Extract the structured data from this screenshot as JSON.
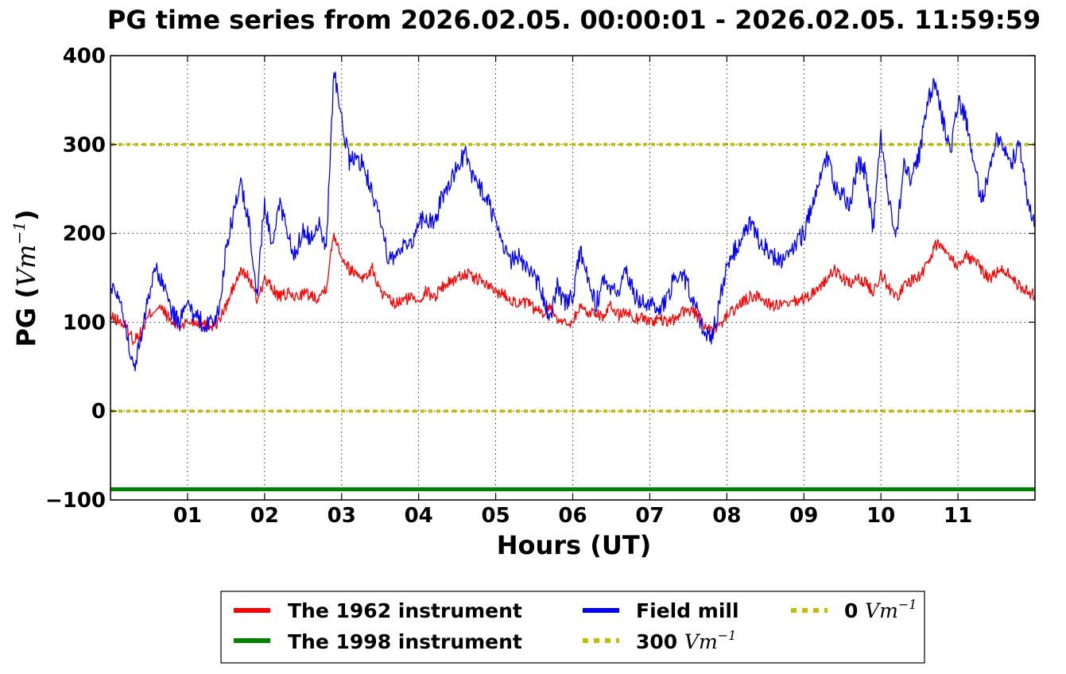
{
  "chart_data": {
    "type": "line",
    "title": "PG time series from 2026.02.05. 00:00:01 - 2026.02.05. 11:59:59",
    "xlabel": "Hours (UT)",
    "ylabel_main": "PG (",
    "ylabel_unit": "Vm",
    "ylabel_exp": "−1",
    "ylabel_close": ")",
    "xlim": [
      0,
      12
    ],
    "ylim": [
      -100,
      400
    ],
    "grid": true,
    "legend_placement": "below",
    "x_ticks": [
      {
        "value": 1,
        "label": "01"
      },
      {
        "value": 2,
        "label": "02"
      },
      {
        "value": 3,
        "label": "03"
      },
      {
        "value": 4,
        "label": "04"
      },
      {
        "value": 5,
        "label": "05"
      },
      {
        "value": 6,
        "label": "06"
      },
      {
        "value": 7,
        "label": "07"
      },
      {
        "value": 8,
        "label": "08"
      },
      {
        "value": 9,
        "label": "09"
      },
      {
        "value": 10,
        "label": "10"
      },
      {
        "value": 11,
        "label": "11"
      }
    ],
    "y_ticks": [
      {
        "value": 400,
        "label": "400"
      },
      {
        "value": 300,
        "label": "300"
      },
      {
        "value": 200,
        "label": "200"
      },
      {
        "value": 100,
        "label": "100"
      },
      {
        "value": 0,
        "label": "0"
      },
      {
        "value": -100,
        "label": "−100"
      }
    ],
    "series": [
      {
        "name": "The 1962 instrument",
        "color": "#ff0000",
        "style": "solid",
        "x": [
          0,
          0.1,
          0.2,
          0.3,
          0.4,
          0.5,
          0.6,
          0.7,
          0.8,
          0.9,
          1.0,
          1.1,
          1.2,
          1.3,
          1.4,
          1.5,
          1.6,
          1.7,
          1.8,
          1.9,
          2.0,
          2.1,
          2.2,
          2.3,
          2.4,
          2.5,
          2.6,
          2.7,
          2.8,
          2.9,
          3.0,
          3.1,
          3.2,
          3.3,
          3.4,
          3.5,
          3.6,
          3.7,
          3.8,
          3.9,
          4.0,
          4.1,
          4.2,
          4.3,
          4.4,
          4.5,
          4.6,
          4.7,
          4.8,
          4.9,
          5.0,
          5.1,
          5.2,
          5.3,
          5.4,
          5.5,
          5.6,
          5.7,
          5.8,
          5.9,
          6.0,
          6.1,
          6.2,
          6.3,
          6.4,
          6.5,
          6.6,
          6.7,
          6.8,
          6.9,
          7.0,
          7.1,
          7.2,
          7.3,
          7.4,
          7.5,
          7.6,
          7.7,
          7.8,
          7.9,
          8.0,
          8.1,
          8.2,
          8.3,
          8.4,
          8.5,
          8.6,
          8.7,
          8.8,
          8.9,
          9.0,
          9.1,
          9.2,
          9.3,
          9.4,
          9.5,
          9.6,
          9.7,
          9.8,
          9.9,
          10.0,
          10.1,
          10.2,
          10.3,
          10.4,
          10.5,
          10.6,
          10.7,
          10.8,
          10.9,
          11.0,
          11.1,
          11.2,
          11.3,
          11.4,
          11.5,
          11.6,
          11.7,
          11.8,
          11.9,
          12.0
        ],
        "y": [
          105,
          102,
          95,
          80,
          88,
          108,
          117,
          112,
          98,
          96,
          100,
          101,
          97,
          96,
          100,
          118,
          140,
          158,
          150,
          125,
          148,
          138,
          128,
          132,
          128,
          133,
          130,
          128,
          140,
          200,
          175,
          160,
          155,
          150,
          160,
          135,
          125,
          120,
          125,
          128,
          126,
          135,
          128,
          140,
          145,
          150,
          155,
          150,
          148,
          140,
          135,
          132,
          126,
          120,
          122,
          115,
          110,
          118,
          105,
          98,
          102,
          118,
          110,
          112,
          106,
          118,
          108,
          112,
          104,
          106,
          100,
          104,
          100,
          102,
          110,
          115,
          108,
          98,
          88,
          95,
          108,
          114,
          122,
          128,
          130,
          124,
          118,
          120,
          118,
          124,
          126,
          132,
          140,
          148,
          158,
          150,
          142,
          148,
          145,
          135,
          155,
          140,
          128,
          140,
          148,
          152,
          165,
          185,
          190,
          172,
          165,
          175,
          170,
          160,
          150,
          155,
          160,
          150,
          140,
          135,
          130
        ]
      },
      {
        "name": "The 1998 instrument",
        "color": "#008000",
        "style": "solid",
        "x": [
          0,
          12
        ],
        "y": [
          -88,
          -88
        ]
      },
      {
        "name": "Field mill",
        "color": "#0000ff",
        "style": "solid",
        "x": [
          0,
          0.1,
          0.2,
          0.3,
          0.4,
          0.5,
          0.6,
          0.7,
          0.8,
          0.9,
          1.0,
          1.1,
          1.2,
          1.3,
          1.4,
          1.5,
          1.6,
          1.7,
          1.8,
          1.9,
          2.0,
          2.1,
          2.2,
          2.3,
          2.4,
          2.5,
          2.6,
          2.7,
          2.8,
          2.9,
          3.0,
          3.1,
          3.2,
          3.3,
          3.4,
          3.5,
          3.6,
          3.7,
          3.8,
          3.9,
          4.0,
          4.1,
          4.2,
          4.3,
          4.4,
          4.5,
          4.6,
          4.7,
          4.8,
          4.9,
          5.0,
          5.1,
          5.2,
          5.3,
          5.4,
          5.5,
          5.6,
          5.7,
          5.8,
          5.9,
          6.0,
          6.1,
          6.2,
          6.3,
          6.4,
          6.5,
          6.6,
          6.7,
          6.8,
          6.9,
          7.0,
          7.1,
          7.2,
          7.3,
          7.4,
          7.5,
          7.6,
          7.7,
          7.8,
          7.9,
          8.0,
          8.1,
          8.2,
          8.3,
          8.4,
          8.5,
          8.6,
          8.7,
          8.8,
          8.9,
          9.0,
          9.1,
          9.2,
          9.3,
          9.4,
          9.5,
          9.6,
          9.7,
          9.8,
          9.9,
          10.0,
          10.1,
          10.2,
          10.3,
          10.4,
          10.5,
          10.6,
          10.7,
          10.8,
          10.9,
          11.0,
          11.1,
          11.2,
          11.3,
          11.4,
          11.5,
          11.6,
          11.7,
          11.8,
          11.9,
          12.0
        ],
        "y": [
          140,
          135,
          95,
          45,
          85,
          135,
          158,
          140,
          110,
          100,
          118,
          105,
          100,
          98,
          110,
          180,
          225,
          255,
          210,
          130,
          235,
          180,
          235,
          200,
          175,
          205,
          195,
          215,
          180,
          385,
          330,
          280,
          285,
          275,
          240,
          215,
          175,
          170,
          190,
          185,
          215,
          215,
          210,
          240,
          255,
          275,
          290,
          265,
          250,
          235,
          210,
          180,
          170,
          175,
          160,
          150,
          135,
          105,
          140,
          120,
          130,
          180,
          145,
          120,
          145,
          130,
          140,
          155,
          130,
          125,
          120,
          115,
          120,
          145,
          160,
          140,
          115,
          90,
          80,
          120,
          160,
          180,
          200,
          210,
          195,
          185,
          175,
          170,
          180,
          190,
          200,
          230,
          255,
          290,
          250,
          245,
          230,
          280,
          270,
          205,
          310,
          235,
          195,
          280,
          260,
          290,
          345,
          370,
          330,
          290,
          350,
          330,
          280,
          240,
          260,
          310,
          300,
          280,
          300,
          240,
          210
        ]
      }
    ],
    "reference_lines": [
      {
        "name_value": "300",
        "name_unit": "Vm",
        "name_exp": "−1",
        "y": 300,
        "color": "#bfbf00",
        "style": "dotted"
      },
      {
        "name_value": "0",
        "name_unit": "Vm",
        "name_exp": "−1",
        "y": 0,
        "color": "#bfbf00",
        "style": "dotted"
      }
    ]
  }
}
